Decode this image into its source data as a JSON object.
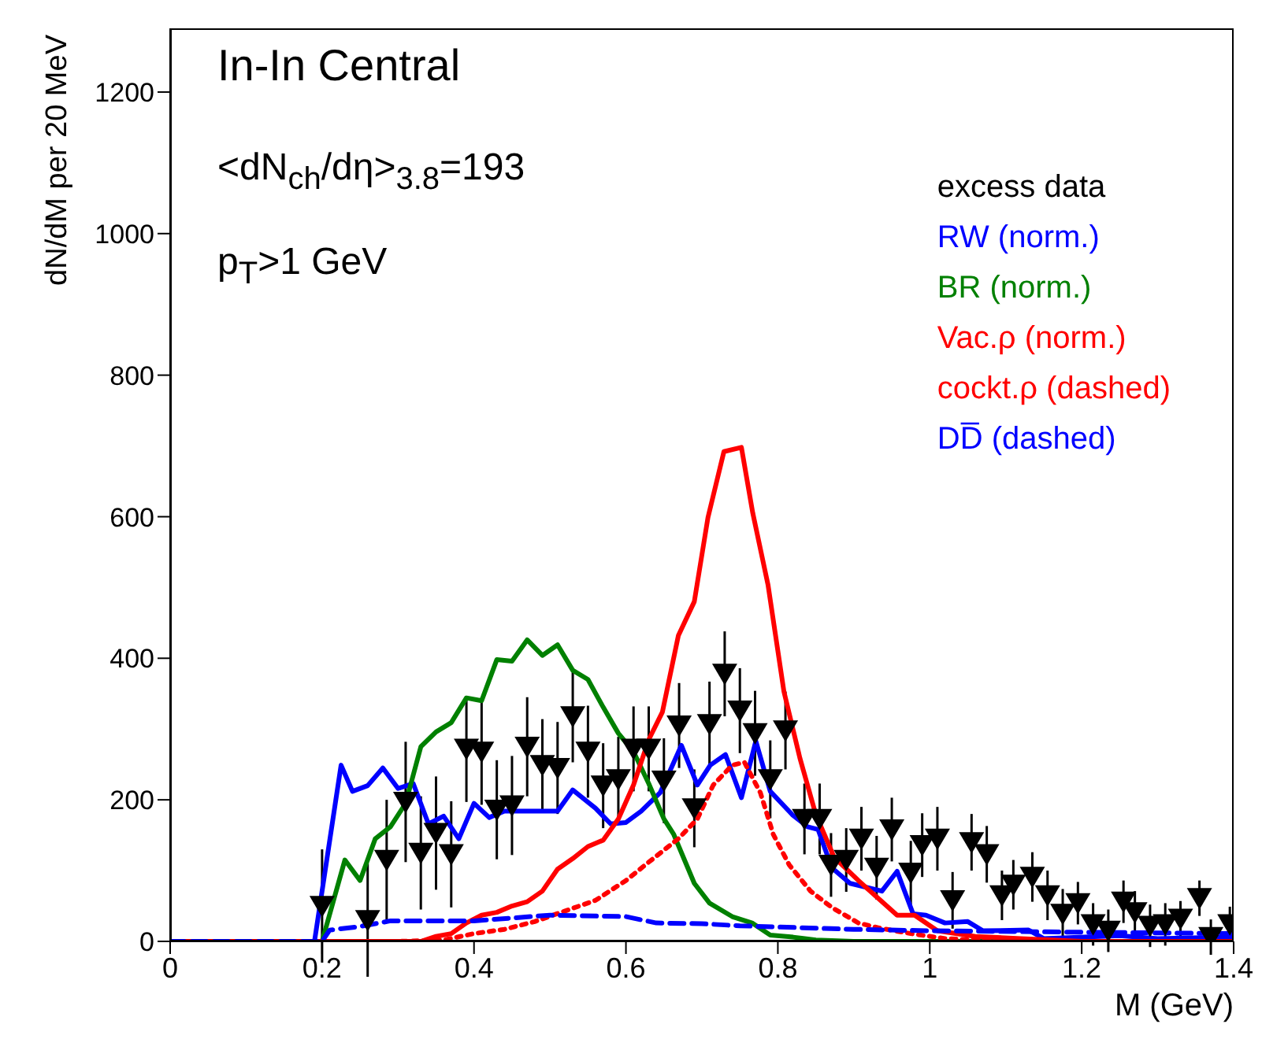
{
  "chart_data": {
    "type": "line",
    "title": "In-In Central",
    "xlabel": "M (GeV)",
    "ylabel": "dN/dM per 20 MeV",
    "annotations": [
      "<dN$_{ch}$/dη>$_{3.8}$=193",
      "p$_{T}$>1 GeV"
    ],
    "xlim": [
      0,
      1.4
    ],
    "xticks": [
      0,
      0.2,
      0.4,
      0.6,
      0.8,
      1,
      1.2,
      1.4
    ],
    "ylim": [
      0,
      1290
    ],
    "yticks": [
      0,
      200,
      400,
      600,
      800,
      1000,
      1200
    ],
    "grid": false,
    "legend": "top right",
    "series": [
      {
        "name": "excess data",
        "type": "scatter",
        "color": "#000000",
        "marker": "triangle",
        "x": [
          0.2,
          0.26,
          0.285,
          0.31,
          0.33,
          0.35,
          0.37,
          0.39,
          0.41,
          0.43,
          0.45,
          0.47,
          0.49,
          0.51,
          0.53,
          0.55,
          0.57,
          0.59,
          0.61,
          0.63,
          0.65,
          0.67,
          0.69,
          0.71,
          0.73,
          0.75,
          0.77,
          0.79,
          0.81,
          0.835,
          0.855,
          0.87,
          0.89,
          0.91,
          0.93,
          0.95,
          0.975,
          0.99,
          1.01,
          1.03,
          1.055,
          1.075,
          1.095,
          1.11,
          1.135,
          1.155,
          1.175,
          1.195,
          1.215,
          1.235,
          1.255,
          1.27,
          1.29,
          1.31,
          1.33,
          1.355,
          1.37,
          1.395
        ],
        "values": [
          50,
          30,
          115,
          197,
          125,
          153,
          123,
          272,
          268,
          186,
          192,
          275,
          249,
          245,
          318,
          268,
          220,
          229,
          272,
          272,
          227,
          305,
          188,
          307,
          378,
          326,
          294,
          229,
          298,
          173,
          173,
          108,
          115,
          145,
          104,
          158,
          97,
          136,
          145,
          58,
          140,
          123,
          65,
          80,
          91,
          65,
          39,
          54,
          24,
          15,
          56,
          41,
          22,
          24,
          32,
          61,
          6,
          24
        ],
        "errors": [
          80,
          80,
          85,
          85,
          80,
          80,
          75,
          75,
          75,
          70,
          70,
          70,
          65,
          65,
          65,
          65,
          60,
          60,
          60,
          60,
          60,
          60,
          55,
          60,
          60,
          60,
          60,
          55,
          55,
          50,
          50,
          45,
          45,
          45,
          45,
          45,
          45,
          45,
          45,
          40,
          40,
          40,
          35,
          35,
          35,
          35,
          35,
          30,
          30,
          30,
          30,
          30,
          30,
          30,
          25,
          25,
          25,
          25
        ]
      },
      {
        "name": "RW (norm.)",
        "color": "#0000ff",
        "line_style": "solid",
        "x": [
          0,
          0.19,
          0.225,
          0.24,
          0.26,
          0.28,
          0.3,
          0.32,
          0.34,
          0.36,
          0.38,
          0.4,
          0.42,
          0.44,
          0.47,
          0.51,
          0.53,
          0.56,
          0.58,
          0.6,
          0.62,
          0.645,
          0.673,
          0.694,
          0.711,
          0.731,
          0.752,
          0.771,
          0.79,
          0.819,
          0.839,
          0.853,
          0.871,
          0.895,
          0.937,
          0.957,
          0.978,
          0.995,
          1.02,
          1.05,
          1.07,
          1.13,
          1.15,
          1.25,
          1.3,
          1.4
        ],
        "values": [
          0,
          0,
          249,
          212,
          220,
          245,
          216,
          223,
          166,
          177,
          145,
          195,
          175,
          184,
          184,
          184,
          214,
          188,
          166,
          168,
          184,
          210,
          277,
          221,
          249,
          264,
          203,
          283,
          212,
          179,
          162,
          158,
          104,
          82,
          71,
          99,
          39,
          37,
          26,
          28,
          15,
          16,
          4,
          8,
          4,
          6
        ]
      },
      {
        "name": "BR (norm.)",
        "color": "#008000",
        "line_style": "solid",
        "x": [
          0,
          0.2,
          0.23,
          0.25,
          0.27,
          0.29,
          0.31,
          0.33,
          0.35,
          0.37,
          0.39,
          0.41,
          0.43,
          0.45,
          0.47,
          0.49,
          0.51,
          0.53,
          0.55,
          0.57,
          0.59,
          0.61,
          0.63,
          0.65,
          0.663,
          0.69,
          0.71,
          0.74,
          0.766,
          0.79,
          0.82,
          0.85,
          0.9,
          1.38
        ],
        "values": [
          0,
          0,
          115,
          86,
          145,
          162,
          195,
          275,
          296,
          309,
          344,
          340,
          398,
          396,
          426,
          404,
          419,
          383,
          370,
          331,
          294,
          268,
          223,
          173,
          151,
          82,
          54,
          35,
          26,
          9,
          6,
          2,
          0,
          0
        ]
      },
      {
        "name": "Vac.ρ (norm.)",
        "color": "#ff0000",
        "line_style": "solid",
        "x": [
          0,
          0.33,
          0.35,
          0.37,
          0.39,
          0.41,
          0.43,
          0.45,
          0.47,
          0.49,
          0.51,
          0.53,
          0.55,
          0.57,
          0.59,
          0.61,
          0.63,
          0.648,
          0.669,
          0.69,
          0.708,
          0.729,
          0.752,
          0.767,
          0.787,
          0.808,
          0.829,
          0.85,
          0.874,
          0.906,
          0.957,
          0.98,
          1.01,
          1.06,
          1.12,
          1.2,
          1.4
        ],
        "values": [
          0,
          0,
          7,
          11,
          26,
          37,
          41,
          50,
          56,
          71,
          102,
          117,
          134,
          143,
          173,
          221,
          285,
          324,
          432,
          480,
          599,
          692,
          698,
          605,
          504,
          353,
          259,
          179,
          119,
          86,
          37,
          37,
          15,
          7,
          4,
          0,
          0
        ]
      },
      {
        "name": "cockt.ρ (dashed)",
        "color": "#ff0000",
        "line_style": "dotted",
        "x": [
          0,
          0.3,
          0.36,
          0.4,
          0.44,
          0.48,
          0.52,
          0.56,
          0.6,
          0.63,
          0.669,
          0.694,
          0.715,
          0.74,
          0.756,
          0.777,
          0.794,
          0.815,
          0.843,
          0.871,
          0.906,
          0.933,
          0.975,
          1.02,
          1.1,
          1.4
        ],
        "values": [
          0,
          0,
          2,
          11,
          17,
          28,
          43,
          58,
          86,
          112,
          145,
          173,
          221,
          249,
          253,
          210,
          151,
          108,
          71,
          48,
          26,
          19,
          11,
          4,
          0,
          0
        ]
      },
      {
        "name": "DD̅ (dashed)",
        "color": "#0000ff",
        "line_style": "dashed",
        "x": [
          0,
          0.2,
          0.21,
          0.25,
          0.29,
          0.4,
          0.5,
          0.6,
          0.64,
          0.7,
          0.75,
          0.9,
          1,
          1.2,
          1.4
        ],
        "values": [
          0,
          0,
          16,
          21,
          29,
          29,
          37,
          35,
          26,
          25,
          22,
          17,
          15,
          13,
          11
        ]
      }
    ]
  }
}
